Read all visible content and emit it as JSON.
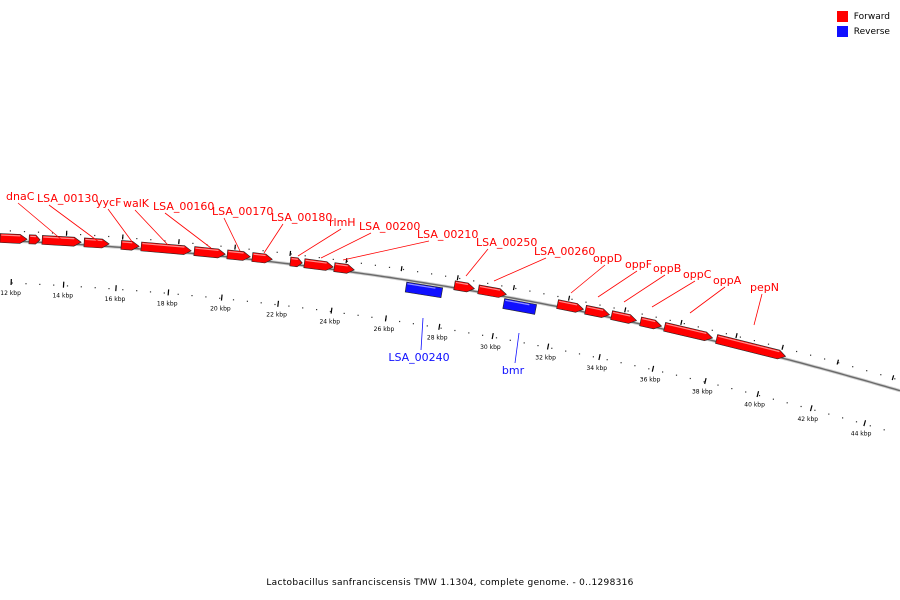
{
  "legend": {
    "forward_label": "Forward",
    "reverse_label": "Reverse",
    "forward_color": "#ff0000",
    "reverse_color": "#1010ff"
  },
  "caption": "Lactobacillus sanfranciscensis TMW 1.1304, complete genome. - 0..1298316",
  "axis": {
    "inner_tick_labels": [
      "12 kbp",
      "14 kbp",
      "16 kbp",
      "18 kbp",
      "20 kbp",
      "22 kbp",
      "24 kbp",
      "26 kbp",
      "28 kbp",
      "30 kbp",
      "32 kbp",
      "34 kbp",
      "36 kbp",
      "38 kbp",
      "40 kbp",
      "42 kbp",
      "44 kbp"
    ]
  },
  "genes": {
    "forward": [
      {
        "label": "dnaC"
      },
      {
        "label": "LSA_00130"
      },
      {
        "label": "yycF"
      },
      {
        "label": "walK"
      },
      {
        "label": "LSA_00160"
      },
      {
        "label": "LSA_00170"
      },
      {
        "label": "LSA_00180"
      },
      {
        "label": "rlmH"
      },
      {
        "label": "LSA_00200"
      },
      {
        "label": "LSA_00210"
      },
      {
        "label": "LSA_00250"
      },
      {
        "label": "LSA_00260"
      },
      {
        "label": "oppD"
      },
      {
        "label": "oppF"
      },
      {
        "label": "oppB"
      },
      {
        "label": "oppC"
      },
      {
        "label": "oppA"
      },
      {
        "label": "pepN"
      }
    ],
    "reverse": [
      {
        "label": "LSA_00240"
      },
      {
        "label": "bmr"
      }
    ]
  }
}
